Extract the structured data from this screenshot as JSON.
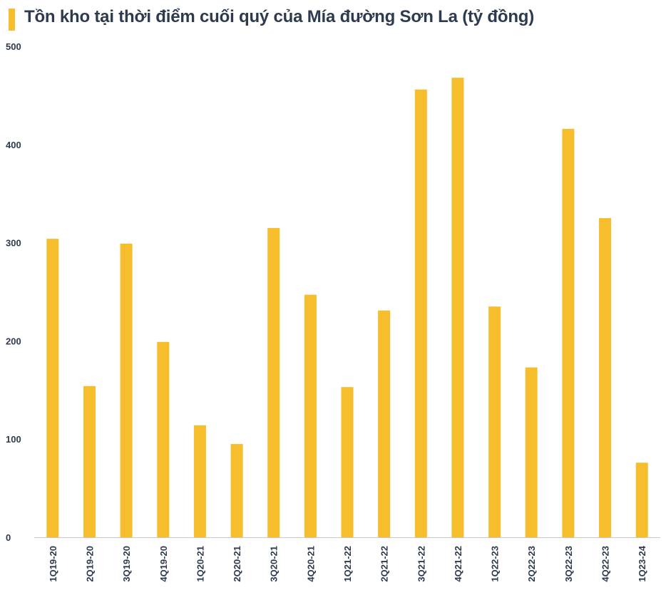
{
  "chart_data": {
    "type": "bar",
    "title": "Tồn kho tại thời điểm cuối quý của Mía đường Sơn La (tỷ đồng)",
    "xlabel": "",
    "ylabel": "",
    "ylim": [
      0,
      500
    ],
    "yticks": [
      "0",
      "100",
      "200",
      "300",
      "400",
      "500"
    ],
    "grid": false,
    "categories": [
      "1Q19-20",
      "2Q19-20",
      "3Q19-20",
      "4Q19-20",
      "1Q20-21",
      "2Q20-21",
      "3Q20-21",
      "4Q20-21",
      "1Q21-22",
      "2Q21-22",
      "3Q21-22",
      "4Q21-22",
      "1Q22-23",
      "2Q22-23",
      "3Q22-23",
      "4Q22-23",
      "1Q23-24"
    ],
    "values": [
      304,
      154,
      299,
      199,
      114,
      95,
      315,
      247,
      153,
      231,
      456,
      468,
      235,
      173,
      416,
      325,
      76
    ],
    "colors": {
      "bar": "#F6BE2C",
      "title_accent": "#F6BE2C",
      "text": "#2E3A4E",
      "axis": "#C8C8C8"
    }
  }
}
